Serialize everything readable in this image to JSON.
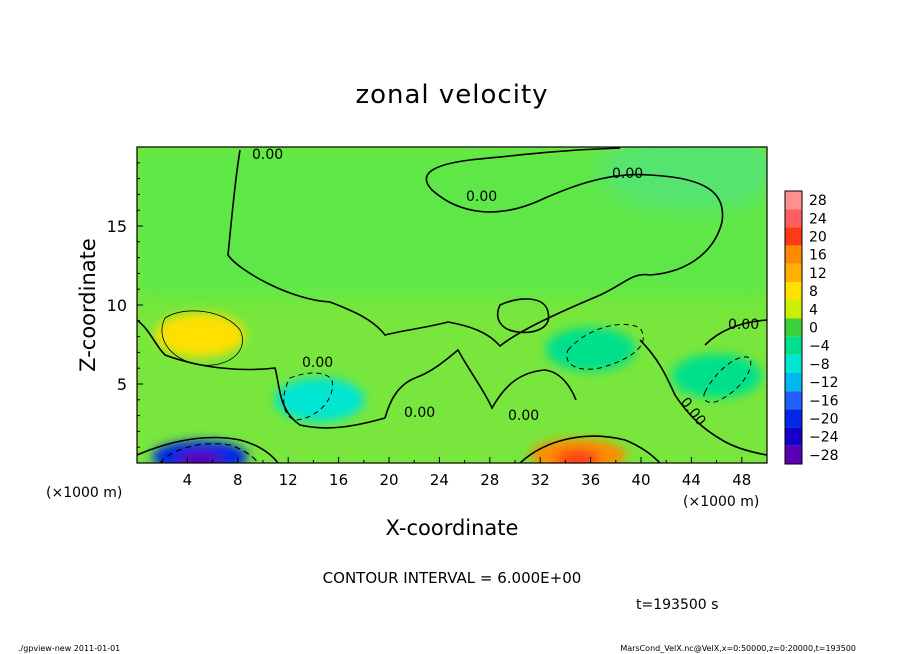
{
  "chart_data": {
    "type": "heatmap",
    "title": "zonal velocity",
    "xlabel": "X-coordinate",
    "ylabel": "Z-coordinate",
    "x_unit_note": "(×1000 m)",
    "y_unit_note": "(×1000 m)",
    "xlim": [
      0,
      50
    ],
    "ylim": [
      0,
      20
    ],
    "x_ticks": [
      4,
      8,
      12,
      16,
      20,
      24,
      28,
      32,
      36,
      40,
      44,
      48
    ],
    "y_ticks": [
      5,
      10,
      15
    ],
    "colorbar": {
      "levels": [
        28,
        24,
        20,
        16,
        12,
        8,
        4,
        0,
        -4,
        -8,
        -12,
        -16,
        -20,
        -24,
        -28
      ],
      "labels": [
        "28",
        "24",
        "20",
        "16",
        "12",
        "8",
        "4",
        "0",
        "−4",
        "−8",
        "−12",
        "−16",
        "−20",
        "−24",
        "−28"
      ],
      "colors": [
        "#ff9090",
        "#ff5f5f",
        "#ff3a14",
        "#ff8a00",
        "#ffb000",
        "#ffe000",
        "#c8f000",
        "#3cd23c",
        "#00e08c",
        "#00e6d2",
        "#00b8f0",
        "#2060ff",
        "#0028e6",
        "#1400c8",
        "#5a00b4"
      ]
    },
    "contour_interval_text": "CONTOUR INTERVAL = 6.000E+00",
    "contour_labels": [
      "0.00",
      "0.00",
      "0.00",
      "0.00",
      "0.00",
      "0.00",
      "0.00",
      "0.00"
    ],
    "features": [
      {
        "kind": "positive",
        "x": 5,
        "z": 8.1,
        "value": 7
      },
      {
        "kind": "negative",
        "x": 14.5,
        "z": 4,
        "value": -7
      },
      {
        "kind": "negative",
        "x": 36,
        "z": 7.2,
        "value": -6
      },
      {
        "kind": "negative",
        "x": 46,
        "z": 5.5,
        "value": -6
      },
      {
        "kind": "negative",
        "x": 5,
        "z": 0.4,
        "value": -22
      },
      {
        "kind": "positive",
        "x": 35,
        "z": 0.5,
        "value": 16
      }
    ],
    "background_value": 2,
    "time_text": "t=193500 s",
    "footer_left": "./gpview-new   2011-01-01",
    "footer_right": "MarsCond_VelX.nc@VelX,x=0:50000,z=0:20000,t=193500"
  }
}
